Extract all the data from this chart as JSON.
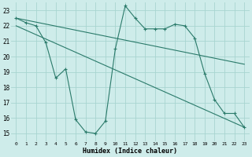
{
  "xlabel": "Humidex (Indice chaleur)",
  "background_color": "#ceecea",
  "grid_color": "#a8d5d0",
  "line_color": "#2a7a6a",
  "xlim": [
    -0.5,
    23.5
  ],
  "ylim": [
    14.5,
    23.5
  ],
  "xticks": [
    0,
    1,
    2,
    3,
    4,
    5,
    6,
    7,
    8,
    9,
    10,
    11,
    12,
    13,
    14,
    15,
    16,
    17,
    18,
    19,
    20,
    21,
    22,
    23
  ],
  "yticks": [
    15,
    16,
    17,
    18,
    19,
    20,
    21,
    22,
    23
  ],
  "curve1_x": [
    0,
    1,
    2,
    3,
    4,
    5,
    6,
    7,
    8,
    9,
    10,
    11,
    12,
    13,
    14,
    15,
    16,
    17,
    18,
    19,
    20,
    21,
    22,
    23
  ],
  "curve1_y": [
    22.5,
    22.2,
    22.0,
    20.9,
    18.6,
    19.2,
    15.9,
    15.1,
    15.0,
    15.8,
    20.5,
    23.3,
    22.5,
    21.8,
    21.8,
    21.8,
    22.1,
    22.0,
    21.2,
    18.9,
    17.2,
    16.3,
    16.3,
    15.4
  ],
  "line2_x": [
    0,
    23
  ],
  "line2_y": [
    22.5,
    19.5
  ],
  "line3_x": [
    0,
    23
  ],
  "line3_y": [
    22.0,
    15.4
  ]
}
